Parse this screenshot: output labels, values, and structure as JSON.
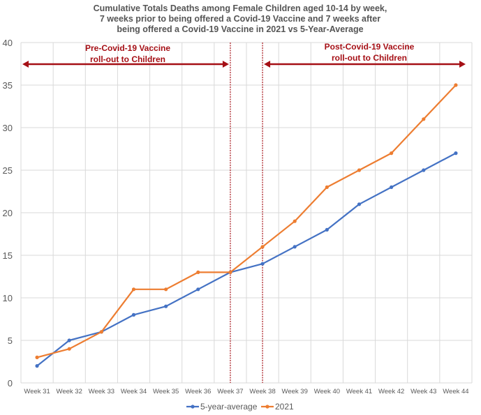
{
  "chart_data": {
    "type": "line",
    "title_lines": [
      "Cumulative Totals Deaths among Female Children aged 10-14 by week,",
      "7 weeks prior to being offered a Covid-19 Vaccine and 7 weeks after",
      "being offered a Covid-19 Vaccine in 2021 vs 5-Year-Average"
    ],
    "categories": [
      "Week 31",
      "Week 32",
      "Week 33",
      "Week 34",
      "Week 35",
      "Week 36",
      "Week 37",
      "Week 38",
      "Week 39",
      "Week 40",
      "Week 41",
      "Week 42",
      "Week 43",
      "Week 44"
    ],
    "series": [
      {
        "name": "5-year-average",
        "color": "#4472c4",
        "values": [
          2,
          5,
          6,
          8,
          9,
          11,
          13,
          14,
          16,
          18,
          21,
          23,
          25,
          27
        ]
      },
      {
        "name": "2021",
        "color": "#ed7d31",
        "values": [
          3,
          4,
          6,
          11,
          11,
          13,
          13,
          16,
          19,
          23,
          25,
          27,
          31,
          35
        ]
      }
    ],
    "ylim": [
      0,
      40
    ],
    "yticks": [
      0,
      5,
      10,
      15,
      20,
      25,
      30,
      35,
      40
    ],
    "grid": true,
    "legend_position": "bottom",
    "annotations": [
      {
        "lines": [
          "Pre-Covid-19 Vaccine",
          "roll-out to Children"
        ],
        "color": "#a50f15"
      },
      {
        "lines": [
          "Post-Covid-19 Vaccine",
          "roll-out to Children"
        ],
        "color": "#a50f15"
      }
    ],
    "divider_color": "#a50f15"
  }
}
